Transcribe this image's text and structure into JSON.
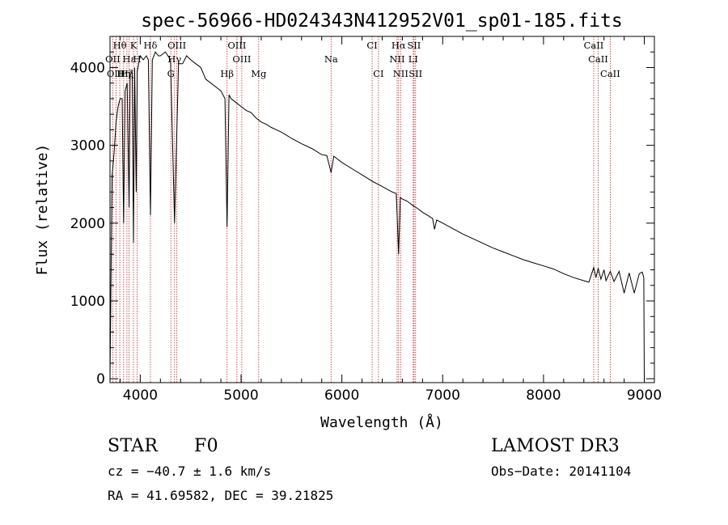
{
  "colors": {
    "spectrum": "#000000",
    "line_marker": "#c62828",
    "axes": "#000000"
  },
  "chart_data": {
    "type": "line",
    "title": "spec-56966-HD024343N412952V01_sp01-185.fits",
    "xlabel": "Wavelength (Å)",
    "ylabel": "Flux (relative)",
    "xlim": [
      3700,
      9100
    ],
    "ylim": [
      -50,
      4400
    ],
    "xticks": [
      4000,
      5000,
      6000,
      7000,
      8000,
      9000
    ],
    "yticks": [
      0,
      1000,
      2000,
      3000,
      4000
    ],
    "xtick_labels": [
      "4000",
      "5000",
      "6000",
      "7000",
      "8000",
      "9000"
    ],
    "ytick_labels": [
      "0",
      "1000",
      "2000",
      "3000",
      "4000"
    ],
    "grid": false,
    "series": [
      {
        "name": "spectrum",
        "x": [
          3700,
          3720,
          3740,
          3760,
          3780,
          3800,
          3820,
          3835,
          3850,
          3870,
          3889,
          3900,
          3920,
          3933,
          3945,
          3960,
          3970,
          3985,
          4000,
          4030,
          4060,
          4080,
          4101,
          4120,
          4150,
          4180,
          4200,
          4250,
          4300,
          4340,
          4380,
          4420,
          4460,
          4500,
          4550,
          4600,
          4650,
          4700,
          4750,
          4800,
          4840,
          4861,
          4880,
          4900,
          4950,
          5000,
          5050,
          5100,
          5150,
          5200,
          5250,
          5300,
          5350,
          5400,
          5450,
          5500,
          5600,
          5700,
          5800,
          5850,
          5893,
          5920,
          5950,
          6000,
          6100,
          6200,
          6300,
          6400,
          6500,
          6540,
          6563,
          6580,
          6600,
          6650,
          6700,
          6750,
          6800,
          6850,
          6900,
          6919,
          6940,
          7000,
          7100,
          7200,
          7300,
          7400,
          7500,
          7600,
          7700,
          7800,
          7900,
          8000,
          8100,
          8200,
          8300,
          8400,
          8450,
          8498,
          8520,
          8542,
          8570,
          8600,
          8620,
          8662,
          8700,
          8750,
          8800,
          8850,
          8900,
          8950,
          8980,
          8995,
          9000,
          9005
        ],
        "y": [
          0,
          2600,
          2900,
          3300,
          3500,
          3600,
          3600,
          2000,
          3700,
          3800,
          2200,
          3900,
          3950,
          1750,
          4000,
          2400,
          3950,
          4050,
          4150,
          4100,
          4150,
          4100,
          2100,
          4100,
          4200,
          4150,
          4150,
          4200,
          4100,
          2000,
          4050,
          4050,
          4150,
          4100,
          4050,
          4000,
          3850,
          3800,
          3750,
          3700,
          3600,
          1950,
          3650,
          3600,
          3550,
          3500,
          3450,
          3420,
          3350,
          3300,
          3270,
          3230,
          3200,
          3170,
          3130,
          3090,
          3020,
          2960,
          2880,
          2870,
          2650,
          2860,
          2830,
          2780,
          2700,
          2620,
          2540,
          2470,
          2400,
          2380,
          1600,
          2330,
          2310,
          2280,
          2230,
          2190,
          2140,
          2100,
          2060,
          1920,
          2040,
          2000,
          1930,
          1860,
          1800,
          1740,
          1680,
          1630,
          1580,
          1530,
          1490,
          1450,
          1410,
          1350,
          1300,
          1260,
          1240,
          1430,
          1300,
          1420,
          1280,
          1400,
          1260,
          1380,
          1250,
          1380,
          1100,
          1360,
          1100,
          1350,
          1370,
          1300,
          0,
          0
        ]
      }
    ]
  },
  "lines": {
    "row_a": [
      {
        "label": "Hθ",
        "wl": 3797
      },
      {
        "label": "K",
        "wl": 3933
      },
      {
        "label": "Hδ",
        "wl": 4101
      },
      {
        "label": "OIII",
        "wl": 4363
      },
      {
        "label": "OIII",
        "wl": 4959
      },
      {
        "label": "CI",
        "wl": 6300
      },
      {
        "label": "Hα",
        "wl": 6563
      },
      {
        "label": "SII",
        "wl": 6716
      },
      {
        "label": "CaII",
        "wl": 8498
      }
    ],
    "row_b": [
      {
        "label": "OII",
        "wl": 3727
      },
      {
        "label": "Hε",
        "wl": 3889
      },
      {
        "label": "H",
        "wl": 3968
      },
      {
        "label": "Hγ",
        "wl": 4340
      },
      {
        "label": "OIII",
        "wl": 5007
      },
      {
        "label": "Na",
        "wl": 5893
      },
      {
        "label": "NII",
        "wl": 6548
      },
      {
        "label": "LI",
        "wl": 6708
      },
      {
        "label": "CaII",
        "wl": 8542
      }
    ],
    "row_c": [
      {
        "label": "OIII",
        "wl": 3760
      },
      {
        "label": "Hη",
        "wl": 3835
      },
      {
        "label": "Hζ",
        "wl": 3868
      },
      {
        "label": "G",
        "wl": 4304
      },
      {
        "label": "Hβ",
        "wl": 4861
      },
      {
        "label": "Mg",
        "wl": 5175
      },
      {
        "label": "CI",
        "wl": 6363
      },
      {
        "label": "NII",
        "wl": 6583
      },
      {
        "label": "SII",
        "wl": 6731
      },
      {
        "label": "CaII",
        "wl": 8662
      }
    ]
  },
  "info": {
    "object_type": "STAR",
    "subclass": "F0",
    "survey": "LAMOST DR3",
    "redshift": "cz = −40.7 ± 1.6 km/s",
    "obs_date": "Obs−Date: 20141104",
    "coords": "RA =  41.69582, DEC =  39.21825"
  }
}
